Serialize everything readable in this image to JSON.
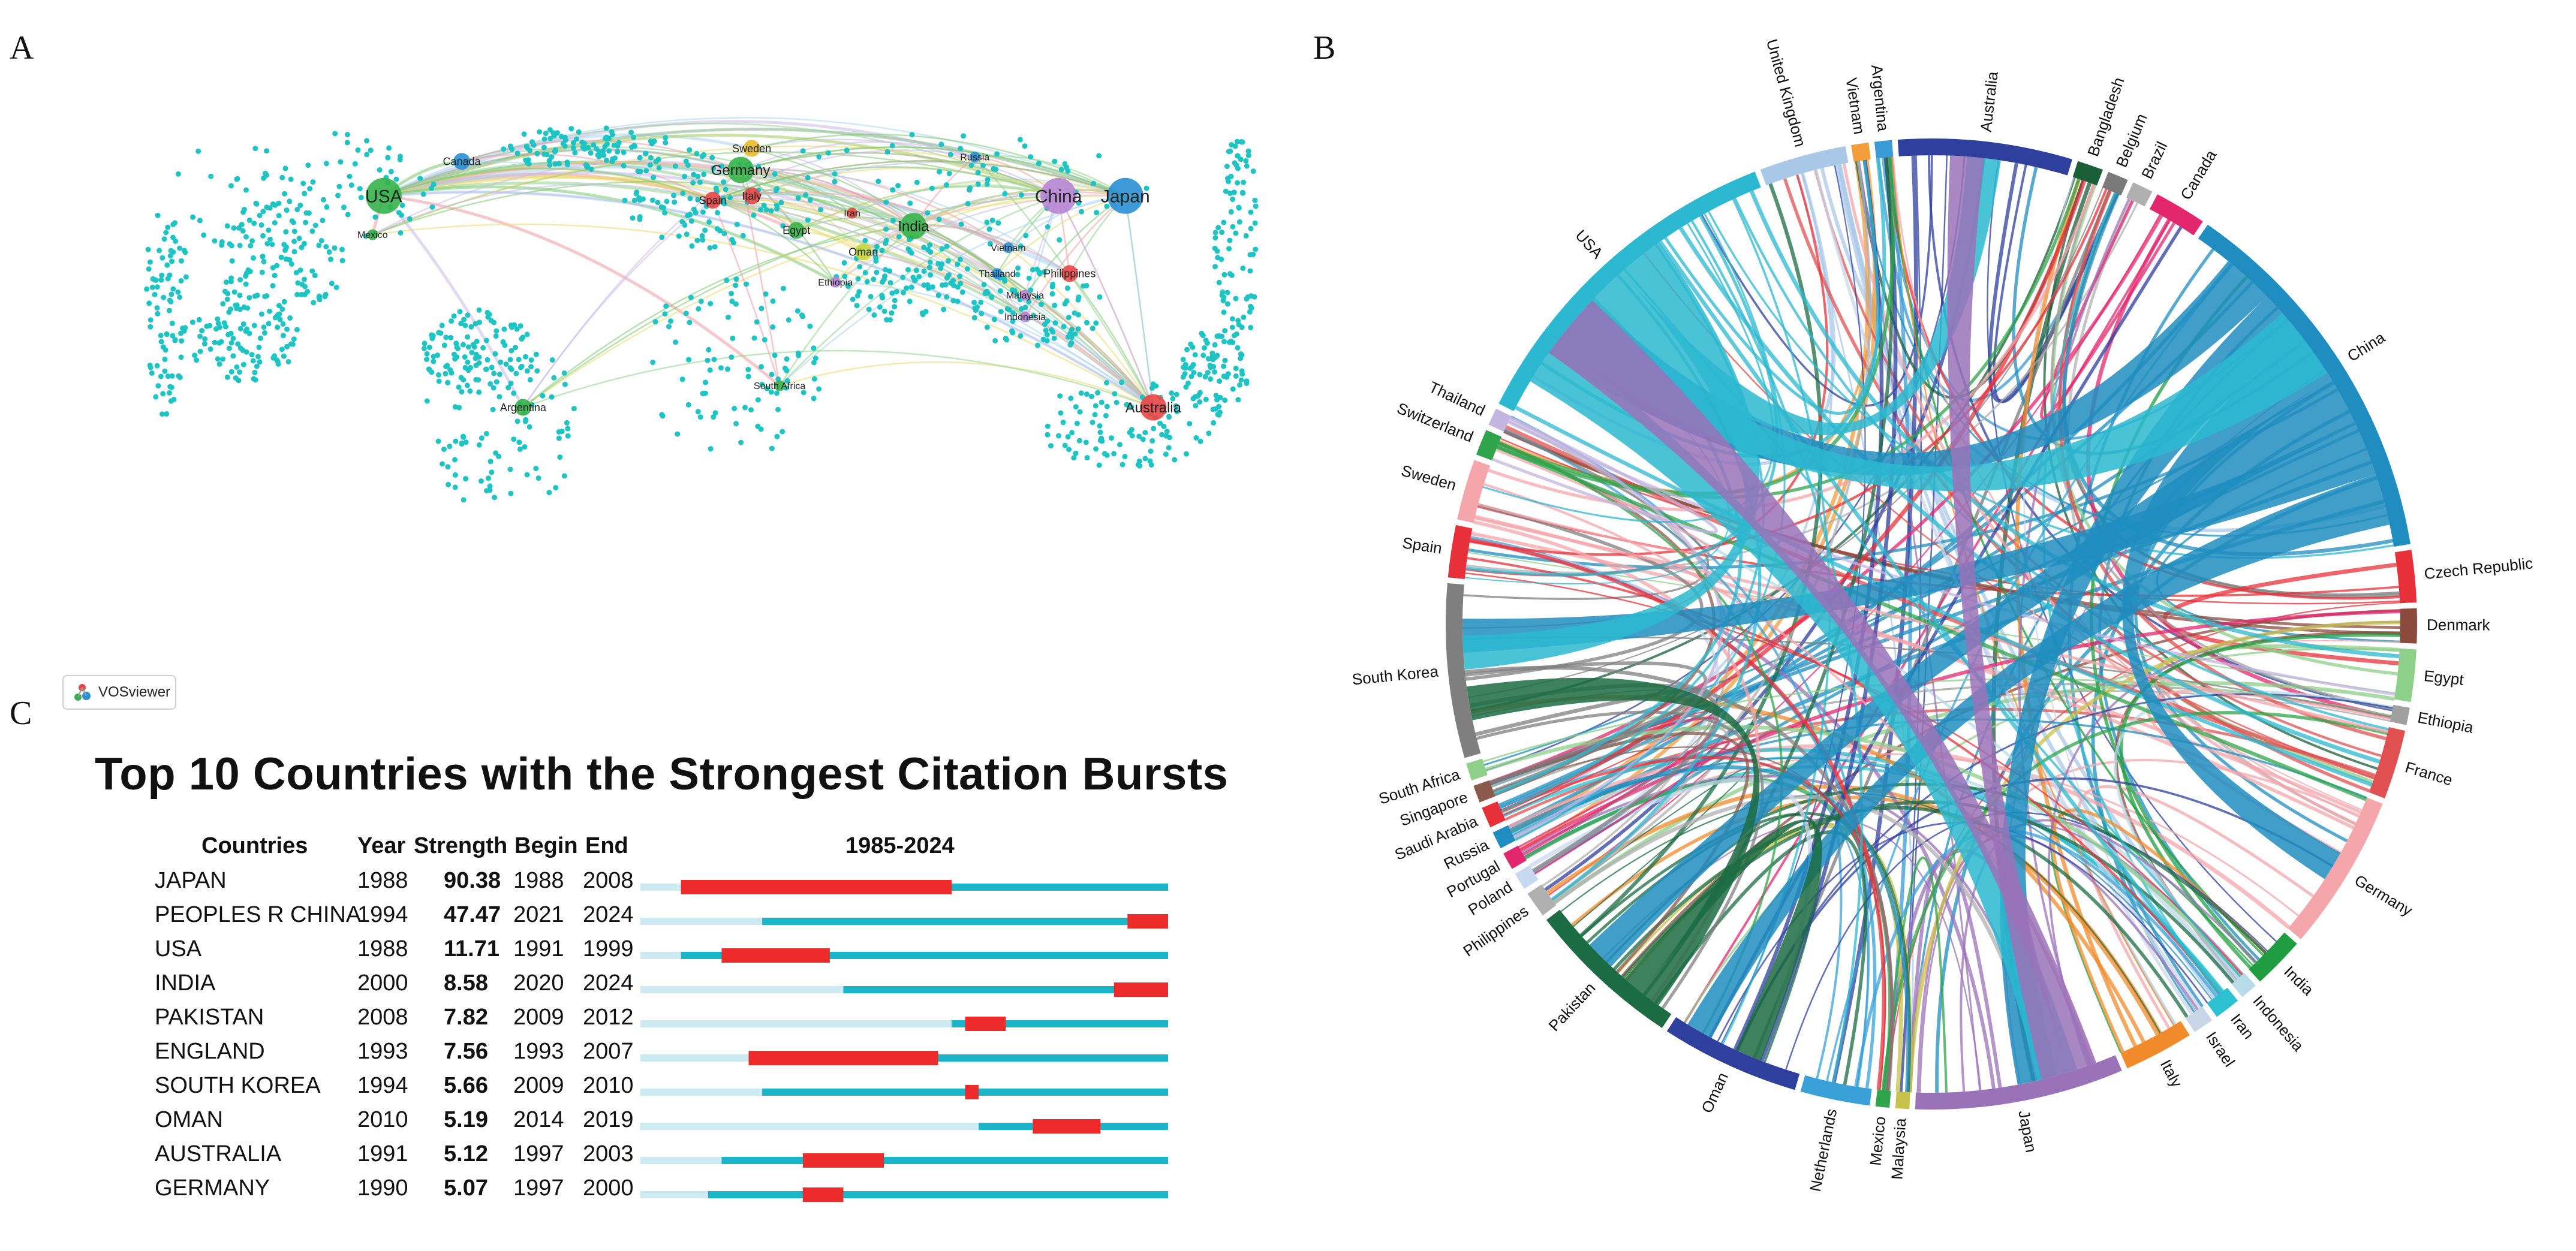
{
  "panels": {
    "a": "A",
    "b": "B",
    "c": "C"
  },
  "vosviewer_label": "VOSviewer",
  "map_labels": [
    {
      "name": "USA",
      "size": "big",
      "color": "#35b34a"
    },
    {
      "name": "Canada",
      "size": "small",
      "color": "#2a8fd4"
    },
    {
      "name": "Mexico",
      "size": "tiny",
      "color": "#35b34a"
    },
    {
      "name": "Germany",
      "size": "mid",
      "color": "#35b34a"
    },
    {
      "name": "Sweden",
      "size": "small",
      "color": "#e8ba2c"
    },
    {
      "name": "Spain",
      "size": "small",
      "color": "#e84646"
    },
    {
      "name": "Italy",
      "size": "small",
      "color": "#e84646"
    },
    {
      "name": "Iran",
      "size": "tiny",
      "color": "#e84646"
    },
    {
      "name": "Egypt",
      "size": "small",
      "color": "#35b34a"
    },
    {
      "name": "Russia",
      "size": "tiny",
      "color": "#2a8fd4"
    },
    {
      "name": "India",
      "size": "mid",
      "color": "#35b34a"
    },
    {
      "name": "Oman",
      "size": "small",
      "color": "#c8d43a"
    },
    {
      "name": "China",
      "size": "big",
      "color": "#b784d4"
    },
    {
      "name": "Japan",
      "size": "big",
      "color": "#2a8fd4"
    },
    {
      "name": "Vietnam",
      "size": "tiny",
      "color": "#2a8fd4"
    },
    {
      "name": "Thailand",
      "size": "tiny",
      "color": "#2a8fd4"
    },
    {
      "name": "Philippines",
      "size": "small",
      "color": "#e84646"
    },
    {
      "name": "Malaysia",
      "size": "tiny",
      "color": "#b784d4"
    },
    {
      "name": "Indonesia",
      "size": "tiny",
      "color": "#b784d4"
    },
    {
      "name": "Ethiopia",
      "size": "tiny",
      "color": "#b784d4"
    },
    {
      "name": "South Africa",
      "size": "tiny",
      "color": "#35b34a"
    },
    {
      "name": "Argentina",
      "size": "small",
      "color": "#35b34a"
    },
    {
      "name": "Australia",
      "size": "mid",
      "color": "#e84646"
    }
  ],
  "chord_countries": [
    "United Kingdom",
    "Vietnam",
    "Argentina",
    "Australia",
    "Bangladesh",
    "Belgium",
    "Brazil",
    "Canada",
    "China",
    "Czech Republic",
    "Denmark",
    "Egypt",
    "Ethiopia",
    "France",
    "Germany",
    "India",
    "Indonesia",
    "Iran",
    "Israel",
    "Italy",
    "Japan",
    "Malaysia",
    "Mexico",
    "Netherlands",
    "Oman",
    "Pakistan",
    "Philippines",
    "Poland",
    "Portugal",
    "Russia",
    "Saudi Arabia",
    "Singapore",
    "South Africa",
    "South Korea",
    "Spain",
    "Sweden",
    "Switzerland",
    "Thailand",
    "USA"
  ],
  "chart_data": {
    "type": "table",
    "title": "Top 10 Countries with the Strongest Citation Bursts",
    "columns": [
      "Countries",
      "Year",
      "Strength",
      "Begin",
      "End",
      "1985-2024"
    ],
    "range_start": 1985,
    "range_end": 2024,
    "range_label": "1985-2024",
    "rows": [
      {
        "country": "JAPAN",
        "year": 1988,
        "strength": "90.38",
        "begin": 1988,
        "end": 2008
      },
      {
        "country": "PEOPLES R CHINA",
        "year": 1994,
        "strength": "47.47",
        "begin": 2021,
        "end": 2024
      },
      {
        "country": "USA",
        "year": 1988,
        "strength": "11.71",
        "begin": 1991,
        "end": 1999
      },
      {
        "country": "INDIA",
        "year": 2000,
        "strength": "8.58",
        "begin": 2020,
        "end": 2024
      },
      {
        "country": "PAKISTAN",
        "year": 2008,
        "strength": "7.82",
        "begin": 2009,
        "end": 2012
      },
      {
        "country": "ENGLAND",
        "year": 1993,
        "strength": "7.56",
        "begin": 1993,
        "end": 2007
      },
      {
        "country": "SOUTH KOREA",
        "year": 1994,
        "strength": "5.66",
        "begin": 2009,
        "end": 2010
      },
      {
        "country": "OMAN",
        "year": 2010,
        "strength": "5.19",
        "begin": 2014,
        "end": 2019
      },
      {
        "country": "AUSTRALIA",
        "year": 1991,
        "strength": "5.12",
        "begin": 1997,
        "end": 2003
      },
      {
        "country": "GERMANY",
        "year": 1990,
        "strength": "5.07",
        "begin": 1997,
        "end": 2000
      }
    ],
    "colors": {
      "before": "#cde9f2",
      "active": "#1ab5c8",
      "burst": "#ee2b2b"
    }
  }
}
